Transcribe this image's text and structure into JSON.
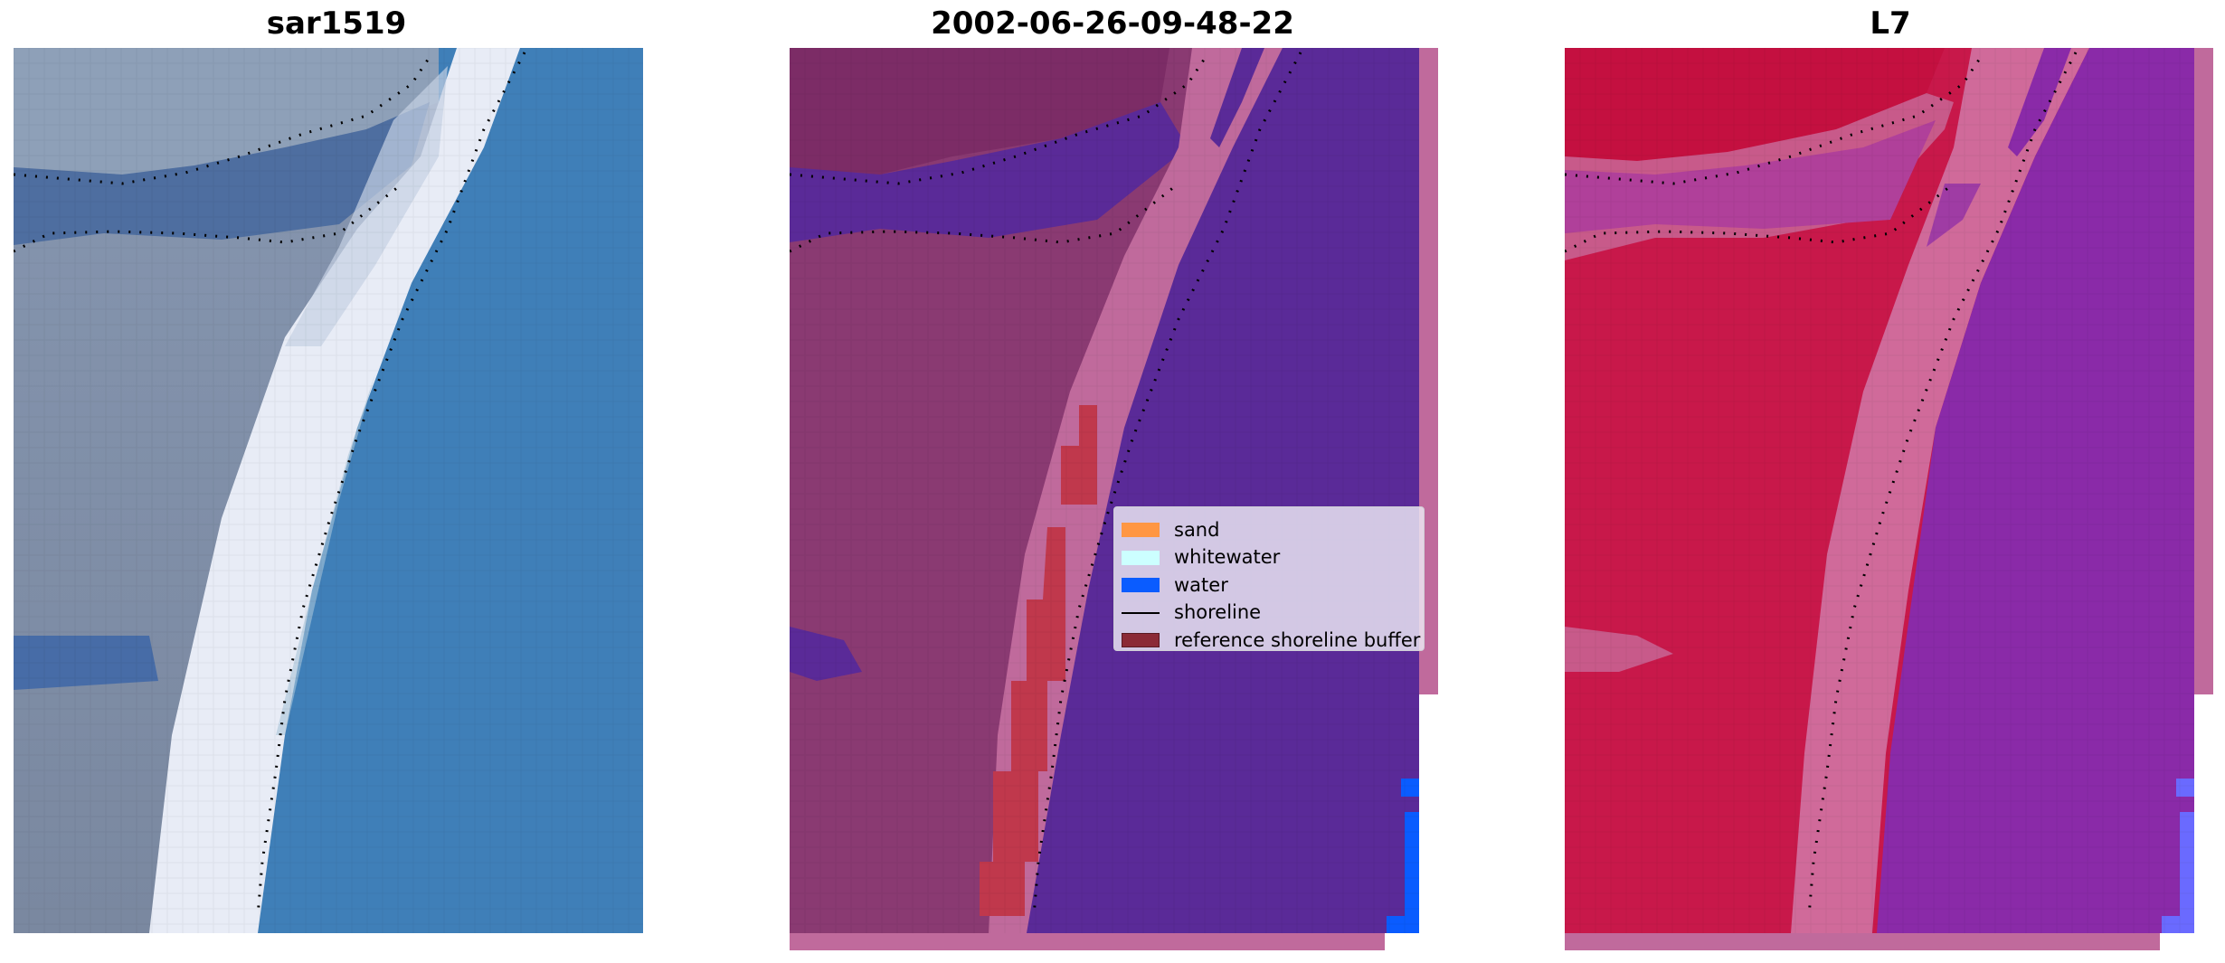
{
  "panels": [
    {
      "title": "sar1519"
    },
    {
      "title": "2002-06-26-09-48-22"
    },
    {
      "title": "L7"
    }
  ],
  "legend": {
    "items": [
      {
        "label": "sand",
        "color": "#ff9642",
        "kind": "patch"
      },
      {
        "label": "whitewater",
        "color": "#ccffff",
        "kind": "patch"
      },
      {
        "label": "water",
        "color": "#0a5cff",
        "kind": "patch"
      },
      {
        "label": "shoreline",
        "color": "#000000",
        "kind": "line"
      },
      {
        "label": "reference shoreline buffer",
        "color": "#8b2a36",
        "kind": "patch"
      }
    ]
  },
  "colors": {
    "rgb_land": "#7e8da6",
    "rgb_road": "#4a6a9c",
    "rgb_whitewater": "#eef0f8",
    "rgb_water": "#3e7db6",
    "class_water": "#5a2a98",
    "class_land": "#8a3a72",
    "class_shore": "#c06a9c",
    "class_buffer": "#c0384c",
    "class_blue": "#0a5cff",
    "index_land": "#c8184a",
    "index_shore": "#d06a9a",
    "index_water": "#8a2aa8",
    "index_blue": "#6a6aff"
  }
}
